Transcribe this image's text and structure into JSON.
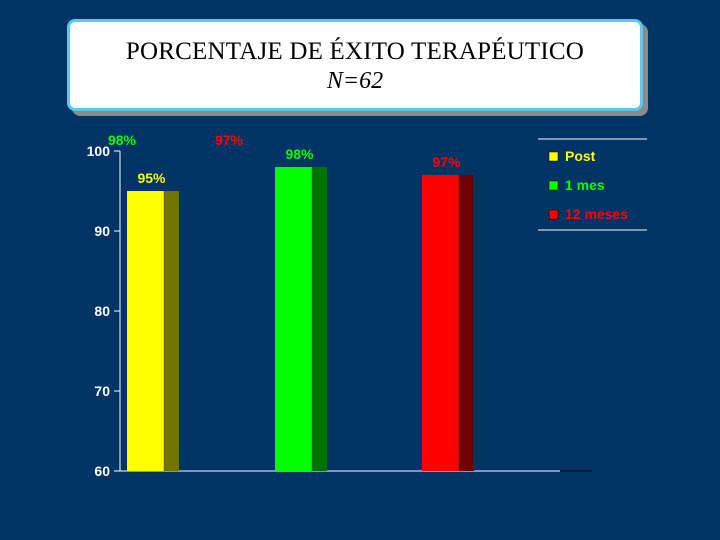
{
  "slide": {
    "title_line1": "PORCENTAJE DE ÉXITO TERAPÉUTICO",
    "title_line2": "N=62"
  },
  "colors": {
    "background": "#003366",
    "post": "#ffff00",
    "mes1": "#00ff00",
    "meses12": "#ff0000",
    "axis": "#ffffff"
  },
  "chart_data": {
    "type": "bar",
    "categories": [
      "",
      "",
      ""
    ],
    "series": [
      {
        "name": "Post",
        "values": [
          95,
          null,
          null
        ],
        "color": "#ffff00",
        "label_color": "#ffff00",
        "value_labels": [
          "95%",
          null,
          null
        ]
      },
      {
        "name": "1 mes",
        "values": [
          null,
          98,
          null
        ],
        "color": "#00ff00",
        "label_color": "#00ff00",
        "value_labels": [
          null,
          "98%",
          null
        ]
      },
      {
        "name": "12 meses",
        "values": [
          null,
          null,
          97
        ],
        "color": "#ff0000",
        "label_color": "#ff0000",
        "value_labels": [
          null,
          null,
          "97%"
        ]
      }
    ],
    "extra_labels": [
      {
        "text": "98%",
        "color": "#00ff00"
      },
      {
        "text": "97%",
        "color": "#ff0000"
      }
    ],
    "y_ticks": [
      "60",
      "70",
      "80",
      "90",
      "100"
    ],
    "ylim": [
      60,
      100
    ],
    "legend_position": "right",
    "grid": false
  }
}
